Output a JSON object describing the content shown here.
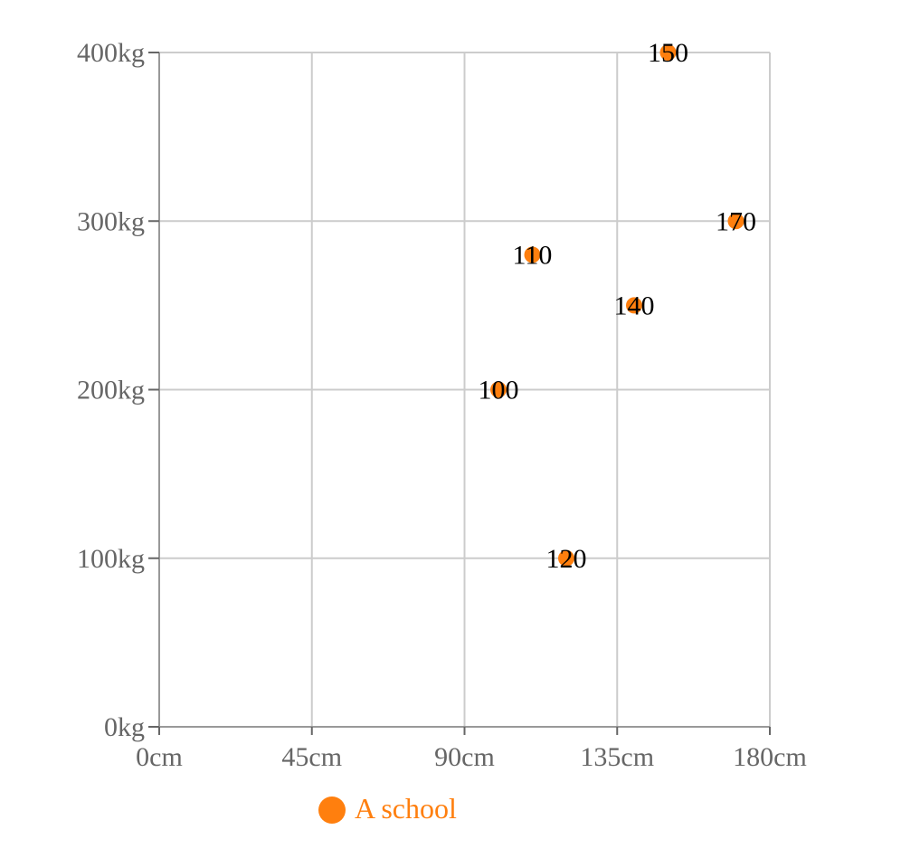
{
  "chart_data": {
    "type": "scatter",
    "title": "",
    "xlabel": "",
    "ylabel": "",
    "xlim": [
      0,
      180
    ],
    "ylim": [
      0,
      400
    ],
    "x_ticks": [
      0,
      45,
      90,
      135,
      180
    ],
    "y_ticks": [
      0,
      100,
      200,
      300,
      400
    ],
    "x_tick_labels": [
      "0cm",
      "45cm",
      "90cm",
      "135cm",
      "180cm"
    ],
    "y_tick_labels": [
      "0kg",
      "100kg",
      "200kg",
      "300kg",
      "400kg"
    ],
    "grid": true,
    "legend_position": "bottom",
    "series": [
      {
        "name": "A school",
        "color": "#ff7f0e",
        "points": [
          {
            "x": 100,
            "y": 200,
            "label": "100"
          },
          {
            "x": 110,
            "y": 280,
            "label": "110"
          },
          {
            "x": 120,
            "y": 100,
            "label": "120"
          },
          {
            "x": 140,
            "y": 250,
            "label": "140"
          },
          {
            "x": 150,
            "y": 400,
            "label": "150"
          },
          {
            "x": 170,
            "y": 300,
            "label": "170"
          }
        ]
      }
    ]
  }
}
